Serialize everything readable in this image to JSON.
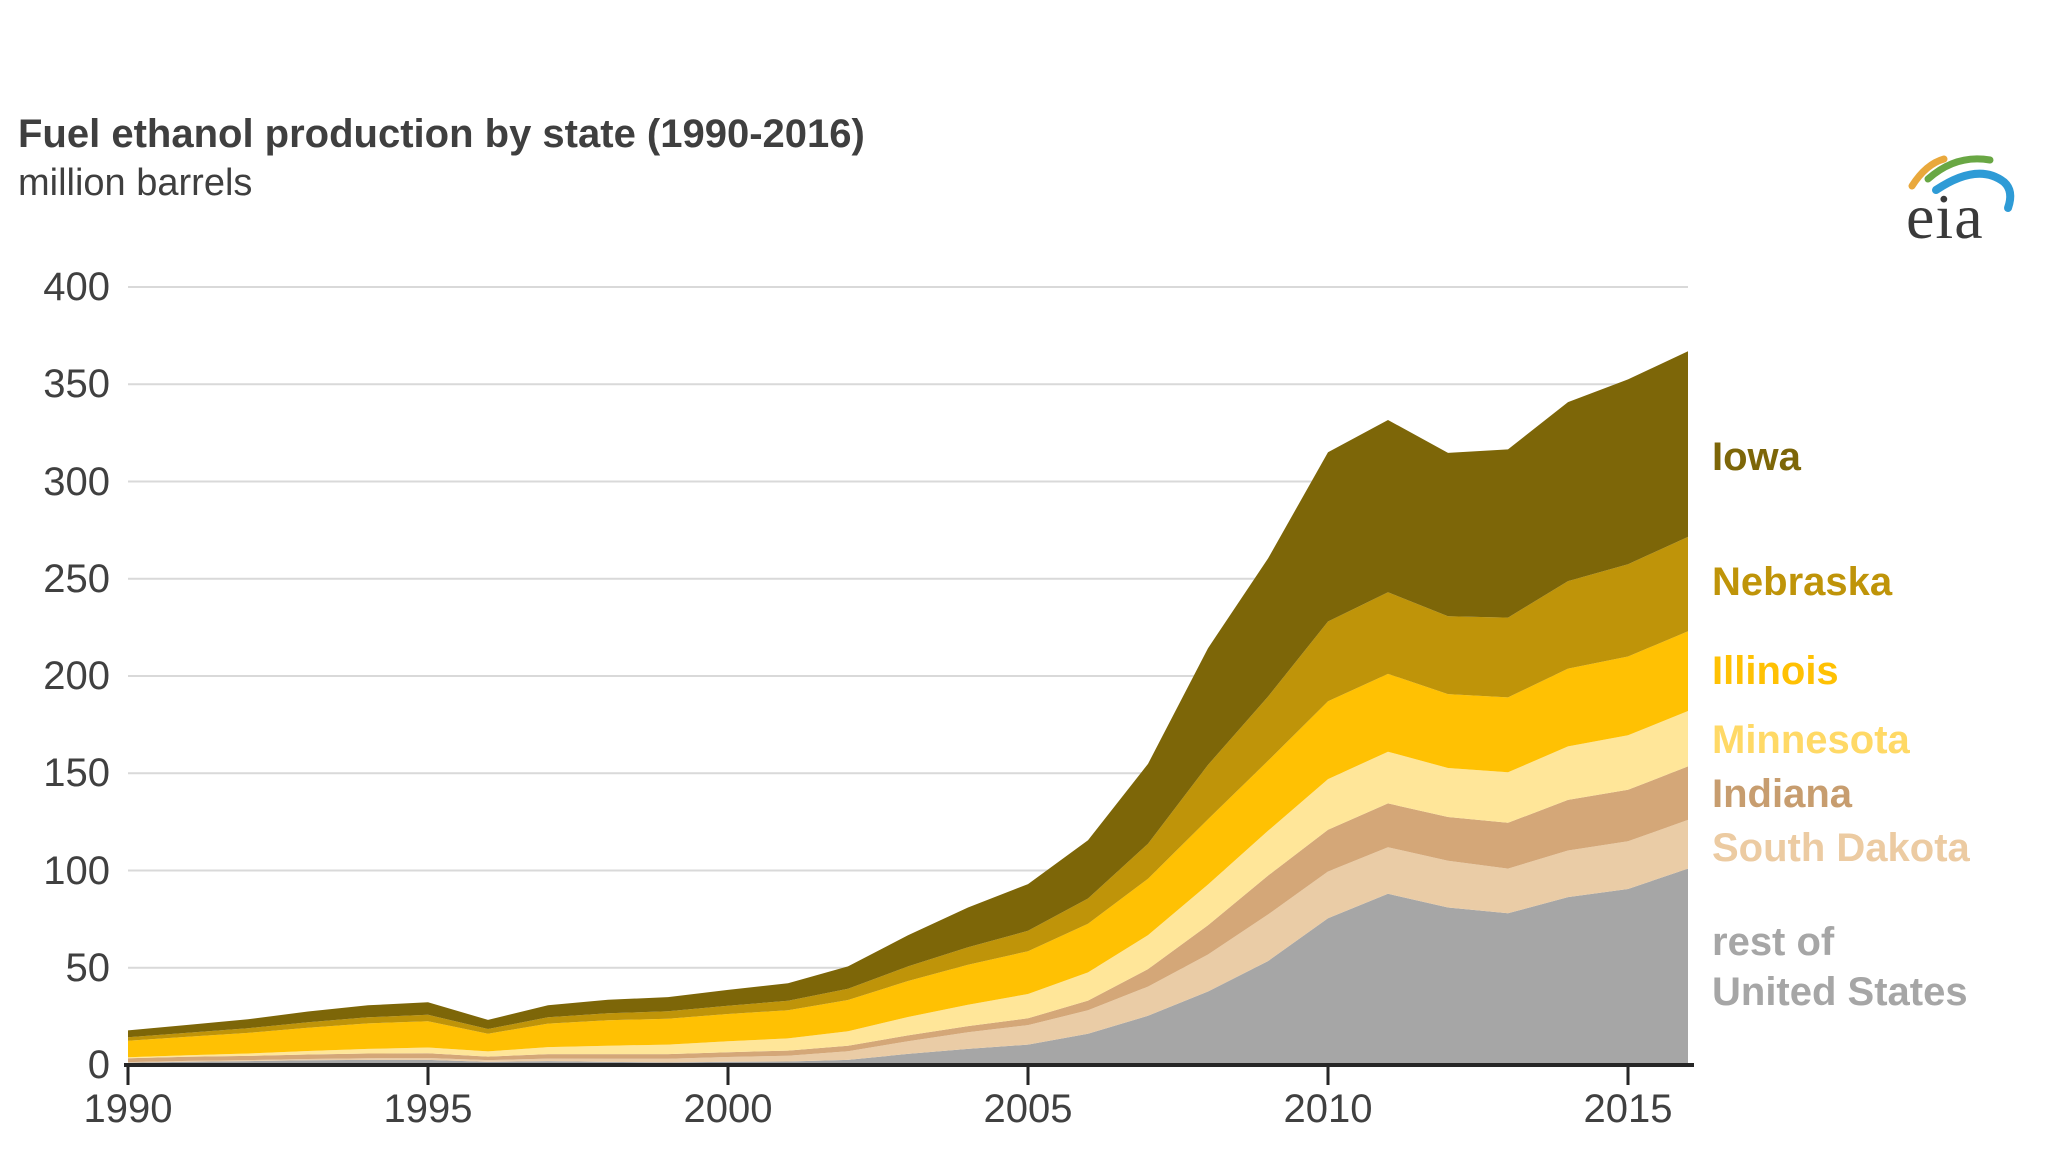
{
  "header": {
    "title": "Fuel ethanol production by state (1990-2016)",
    "subtitle": "million barrels",
    "logo_text": "eia"
  },
  "colors": {
    "background": "#FFFFFF",
    "title_text": "#3F3F3F",
    "tick_text": "#404040",
    "gridline": "#D9D9D9",
    "axis_line": "#262626"
  },
  "chart_data": {
    "type": "area",
    "stacked": true,
    "title": "Fuel ethanol production by state (1990-2016)",
    "ylabel": "million barrels",
    "xlabel": "",
    "grid": "horizontal",
    "legend_position": "right",
    "xlim": [
      1990,
      2016
    ],
    "ylim": [
      0,
      400
    ],
    "x_ticks": [
      1990,
      1995,
      2000,
      2005,
      2010,
      2015
    ],
    "y_ticks": [
      400,
      350,
      300,
      250,
      200,
      150,
      100,
      50,
      0
    ],
    "x": [
      1990,
      1991,
      1992,
      1993,
      1994,
      1995,
      1996,
      1997,
      1998,
      1999,
      2000,
      2001,
      2002,
      2003,
      2004,
      2005,
      2006,
      2007,
      2008,
      2009,
      2010,
      2011,
      2012,
      2013,
      2014,
      2015,
      2016
    ],
    "stack_order_bottom_to_top": [
      "rest_of_united_states",
      "south_dakota",
      "indiana",
      "minnesota",
      "illinois",
      "nebraska",
      "iowa"
    ],
    "series": [
      {
        "id": "iowa",
        "name": "Iowa",
        "color": "#7D6608",
        "label_color": "#7D6608",
        "values": [
          3.5,
          4.0,
          4.6,
          5.5,
          6.2,
          6.5,
          4.7,
          6.2,
          6.9,
          7.3,
          8.1,
          9.0,
          11.5,
          16.0,
          20.5,
          24.0,
          30.0,
          41.0,
          60.0,
          71.0,
          87.0,
          88.5,
          84.0,
          86.5,
          92.0,
          95.0,
          95.5
        ]
      },
      {
        "id": "nebraska",
        "name": "Nebraska",
        "color": "#BF9409",
        "label_color": "#BF9409",
        "values": [
          1.8,
          2.1,
          2.4,
          2.8,
          3.1,
          3.3,
          2.4,
          3.2,
          3.6,
          3.8,
          4.3,
          4.8,
          5.8,
          7.5,
          9.0,
          10.5,
          13.0,
          18.0,
          28.0,
          33.0,
          41.0,
          42.0,
          40.0,
          41.0,
          45.0,
          47.5,
          48.5
        ]
      },
      {
        "id": "illinois",
        "name": "Illinois",
        "color": "#FFC103",
        "label_color": "#FFC103",
        "values": [
          8.5,
          9.5,
          10.6,
          12.0,
          13.1,
          13.5,
          9.1,
          12.1,
          13.1,
          13.3,
          14.0,
          14.5,
          16.0,
          18.5,
          20.5,
          22.0,
          25.0,
          29.0,
          33.5,
          36.0,
          40.0,
          40.0,
          38.0,
          38.5,
          40.0,
          40.5,
          41.0
        ]
      },
      {
        "id": "minnesota",
        "name": "Minnesota",
        "color": "#FFE699",
        "label_color": "#FFD966",
        "values": [
          0.5,
          0.8,
          1.2,
          1.8,
          2.4,
          3.0,
          2.7,
          3.6,
          4.3,
          4.9,
          5.6,
          6.3,
          7.5,
          9.5,
          11.0,
          12.5,
          14.5,
          17.5,
          21.0,
          23.0,
          26.0,
          26.6,
          25.2,
          26.0,
          27.5,
          28.0,
          28.5
        ]
      },
      {
        "id": "indiana",
        "name": "Indiana",
        "color": "#D4A778",
        "label_color": "#C79D6F",
        "values": [
          2.0,
          2.1,
          2.2,
          2.3,
          2.4,
          2.4,
          1.8,
          2.3,
          2.4,
          2.4,
          2.5,
          2.6,
          2.8,
          3.0,
          3.2,
          3.5,
          5.0,
          9.0,
          15.0,
          20.0,
          21.5,
          22.5,
          22.5,
          23.5,
          26.0,
          26.5,
          27.5
        ]
      },
      {
        "id": "south_dakota",
        "name": "South Dakota",
        "color": "#EACCA6",
        "label_color": "#ECCBA2",
        "values": [
          0.3,
          0.4,
          0.5,
          0.7,
          0.9,
          1.0,
          0.9,
          1.3,
          1.6,
          1.9,
          2.4,
          3.0,
          4.5,
          6.5,
          8.5,
          10.0,
          12.0,
          15.0,
          19.0,
          24.0,
          24.0,
          24.0,
          24.0,
          23.0,
          24.0,
          24.5,
          25.0
        ]
      },
      {
        "id": "rest_of_united_states",
        "name": "rest of United States",
        "legend_label": "rest of\nUnited States",
        "color": "#A6A6A6",
        "label_color": "#A6A6A6",
        "values": [
          1.2,
          1.7,
          2.0,
          2.4,
          2.6,
          2.6,
          1.6,
          2.0,
          1.6,
          1.3,
          1.7,
          1.8,
          2.6,
          5.7,
          8.3,
          10.5,
          16.1,
          25.3,
          37.8,
          53.4,
          75.5,
          88.0,
          81.0,
          78.0,
          86.3,
          90.5,
          101.0
        ]
      }
    ]
  }
}
